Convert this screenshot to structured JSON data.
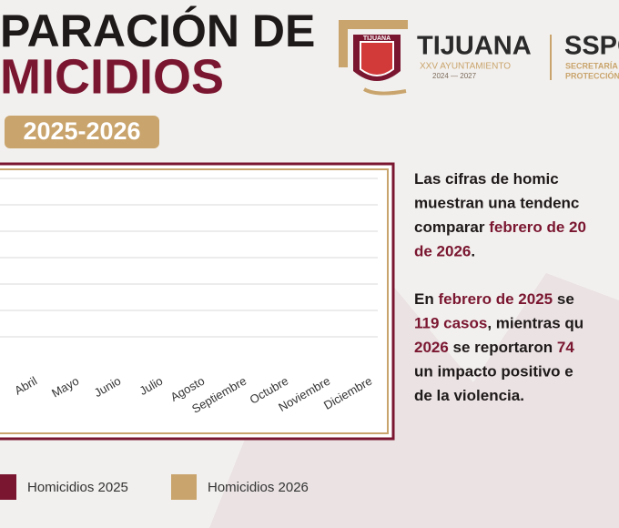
{
  "header": {
    "title_lines": [
      "PARACIÓN DE",
      "MICIDIOS"
    ],
    "period": "2025-2026"
  },
  "logo": {
    "name": "TIJUANA",
    "subtitle": "XXV AYUNTAMIENTO",
    "years": "2024 — 2027",
    "shield_text": "TIJUANA",
    "org": "SSPC",
    "org_lines": [
      "SECRETARÍA D",
      "PROTECCIÓN"
    ]
  },
  "chart": {
    "months": [
      "Abril",
      "Mayo",
      "Junio",
      "Julio",
      "Agosto",
      "Septiembre",
      "Octubre",
      "Noviembre",
      "Diciembre"
    ],
    "legend": [
      {
        "name": "Homicidios 2025",
        "color": "#7a1630"
      },
      {
        "name": "Homicidios 2026",
        "color": "#c9a46c"
      }
    ]
  },
  "text": {
    "paragraphs": [
      {
        "lines": [
          [
            {
              "text": "Las cifras de homic",
              "highlight": false
            }
          ],
          [
            {
              "text": "muestran una tendenc",
              "highlight": false
            }
          ],
          [
            {
              "text": "comparar ",
              "highlight": false
            },
            {
              "text": "febrero de 20",
              "highlight": true
            }
          ],
          [
            {
              "text": "de 2026",
              "highlight": true
            },
            {
              "text": ".",
              "highlight": false
            }
          ]
        ]
      },
      {
        "lines": [
          [
            {
              "text": "En ",
              "highlight": false
            },
            {
              "text": "febrero de 2025",
              "highlight": true
            },
            {
              "text": " se",
              "highlight": false
            }
          ],
          [
            {
              "text": "119 casos",
              "highlight": true
            },
            {
              "text": ", mientras qu",
              "highlight": false
            }
          ],
          [
            {
              "text": "2026",
              "highlight": true
            },
            {
              "text": " se reportaron ",
              "highlight": false
            },
            {
              "text": "74",
              "highlight": true
            }
          ],
          [
            {
              "text": "un impacto positivo e",
              "highlight": false
            }
          ],
          [
            {
              "text": "de la violencia.",
              "highlight": false
            }
          ]
        ]
      }
    ]
  }
}
